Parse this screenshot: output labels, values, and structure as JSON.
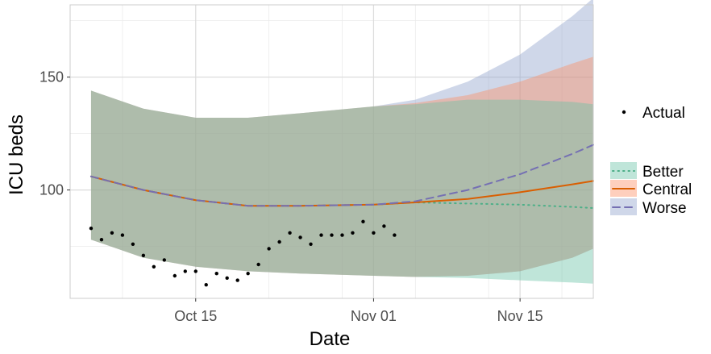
{
  "chart_data": {
    "type": "line",
    "title": "",
    "xlabel": "Date",
    "ylabel": "ICU beds",
    "x_tick_labels": [
      "Oct 15",
      "Nov 01",
      "Nov 15"
    ],
    "y_tick_labels": [
      "100",
      "150"
    ],
    "x_ticks": [
      "2020-10-15",
      "2020-11-01",
      "2020-11-15"
    ],
    "y_ticks": [
      100,
      150
    ],
    "xlim": [
      "2020-10-03",
      "2020-11-22"
    ],
    "ylim": [
      52,
      182
    ],
    "grid": true,
    "legend_placement": "right",
    "actual": {
      "label": "Actual",
      "color": "#000000",
      "dates": [
        "2020-10-05",
        "2020-10-06",
        "2020-10-07",
        "2020-10-08",
        "2020-10-09",
        "2020-10-10",
        "2020-10-11",
        "2020-10-12",
        "2020-10-13",
        "2020-10-14",
        "2020-10-15",
        "2020-10-16",
        "2020-10-17",
        "2020-10-18",
        "2020-10-19",
        "2020-10-20",
        "2020-10-21",
        "2020-10-22",
        "2020-10-23",
        "2020-10-24",
        "2020-10-25",
        "2020-10-26",
        "2020-10-27",
        "2020-10-28",
        "2020-10-29",
        "2020-10-30",
        "2020-10-31",
        "2020-11-01",
        "2020-11-02",
        "2020-11-03"
      ],
      "values": [
        83,
        78,
        81,
        80,
        76,
        71,
        66,
        69,
        62,
        64,
        64,
        58,
        63,
        61,
        60,
        63,
        67,
        74,
        77,
        81,
        79,
        76,
        80,
        80,
        80,
        81,
        86,
        81,
        84,
        80
      ]
    },
    "scenarios_legend_title": "",
    "scenarios": [
      {
        "name": "Better",
        "line_color": "#4daf88",
        "fill_color": "#66c2a5",
        "dash": "dotted",
        "dates": [
          "2020-10-05",
          "2020-10-10",
          "2020-10-15",
          "2020-10-20",
          "2020-10-25",
          "2020-11-01",
          "2020-11-05",
          "2020-11-10",
          "2020-11-15",
          "2020-11-20",
          "2020-11-22"
        ],
        "median": [
          106,
          100,
          95.5,
          93,
          93,
          93.5,
          94.5,
          94,
          93.5,
          92.5,
          92
        ],
        "lower": [
          78,
          70,
          66,
          64,
          63,
          62,
          61.5,
          61,
          60,
          59,
          58.5
        ],
        "upper": [
          144,
          136,
          132,
          132,
          134,
          137,
          138,
          140,
          140,
          139,
          138
        ]
      },
      {
        "name": "Central",
        "line_color": "#d95f02",
        "fill_color": "#fc8d62",
        "dash": "solid",
        "dates": [
          "2020-10-05",
          "2020-10-10",
          "2020-10-15",
          "2020-10-20",
          "2020-10-25",
          "2020-11-01",
          "2020-11-05",
          "2020-11-10",
          "2020-11-15",
          "2020-11-20",
          "2020-11-22"
        ],
        "median": [
          106,
          100,
          95.5,
          93,
          93,
          93.5,
          94.5,
          96,
          99,
          102.5,
          104
        ],
        "lower": [
          78,
          70,
          66,
          64,
          63,
          62,
          61.5,
          62,
          64,
          70,
          74
        ],
        "upper": [
          144,
          136,
          132,
          132,
          134,
          137,
          138.5,
          142,
          148,
          156,
          159
        ]
      },
      {
        "name": "Worse",
        "line_color": "#7570b3",
        "fill_color": "#8da0cb",
        "dash": "dashed",
        "dates": [
          "2020-10-05",
          "2020-10-10",
          "2020-10-15",
          "2020-10-20",
          "2020-10-25",
          "2020-11-01",
          "2020-11-05",
          "2020-11-10",
          "2020-11-15",
          "2020-11-20",
          "2020-11-22"
        ],
        "median": [
          106,
          100,
          95.5,
          93,
          93,
          93.5,
          95,
          100,
          107,
          116,
          120
        ],
        "lower": [
          78,
          70,
          66,
          64,
          63,
          62,
          61.5,
          62,
          64,
          70,
          74
        ],
        "upper": [
          144,
          136,
          132,
          132,
          134,
          137,
          140,
          148,
          160,
          177,
          185
        ]
      }
    ]
  }
}
